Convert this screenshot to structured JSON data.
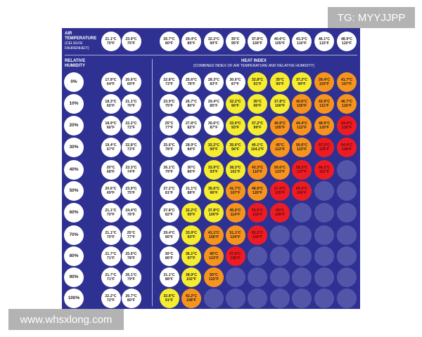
{
  "watermark_top": "TG: MYYJJPP",
  "watermark_bottom": "www.whsxlong.com",
  "header": {
    "air_temp_label": "AIR TEMPERATURE",
    "air_temp_sub": "(CELSIUS/ FAHRENHEIT)",
    "rh_label": "RELATIVE HUMIDITY",
    "heat_index_title": "HEAT INDEX",
    "heat_index_sub": "(COMBINED INDEX OF AIR TEMPERATURE AND RELATIVE HUMIDITY)"
  },
  "colors": {
    "background": "#2e3192",
    "white": "#ffffff",
    "yellow": "#f6ec30",
    "orange": "#f7941d",
    "red": "#ed1c24",
    "empty": "#5356a8"
  },
  "air_temps": [
    [
      "21.1°C",
      "70°F"
    ],
    [
      "23.9°C",
      "75°F"
    ],
    [
      "26.7°C",
      "80°F"
    ],
    [
      "29.4°C",
      "85°F"
    ],
    [
      "32.2°C",
      "90°F"
    ],
    [
      "35°C",
      "95°F"
    ],
    [
      "37.8°C",
      "100°F"
    ],
    [
      "40.6°C",
      "105°F"
    ],
    [
      "43.3°C",
      "110°F"
    ],
    [
      "46.1°C",
      "115°F"
    ],
    [
      "48.9°C",
      "120°F"
    ]
  ],
  "rows": [
    {
      "rh": "0%",
      "cells": [
        [
          "17.8°C",
          "64°F",
          "w"
        ],
        [
          "20.6°C",
          "69°F",
          "w"
        ],
        [
          "22.8°C",
          "73°F",
          "w"
        ],
        [
          "25.6°C",
          "78°F",
          "w"
        ],
        [
          "28.3°C",
          "83°F",
          "w"
        ],
        [
          "30.6°C",
          "87°F",
          "w"
        ],
        [
          "32.8°C",
          "91°F",
          "y"
        ],
        [
          "35°C",
          "95°F",
          "y"
        ],
        [
          "37.2°C",
          "99°F",
          "y"
        ],
        [
          "39.4°C",
          "103°F",
          "o"
        ],
        [
          "41.7°C",
          "107°F",
          "o"
        ]
      ]
    },
    {
      "rh": "10%",
      "cells": [
        [
          "18.3°C",
          "65°F",
          "w"
        ],
        [
          "21.1°C",
          "70°F",
          "w"
        ],
        [
          "23.9°C",
          "75°F",
          "w"
        ],
        [
          "26.7°C",
          "80°F",
          "w"
        ],
        [
          "29.4°C",
          "85°F",
          "w"
        ],
        [
          "32.2°C",
          "90°F",
          "y"
        ],
        [
          "35°C",
          "95°F",
          "y"
        ],
        [
          "37.8°C",
          "100°F",
          "y"
        ],
        [
          "40.6°C",
          "105°F",
          "o"
        ],
        [
          "43.9°C",
          "111°F",
          "o"
        ],
        [
          "46.7°C",
          "116°F",
          "o"
        ]
      ]
    },
    {
      "rh": "20%",
      "cells": [
        [
          "18.9°C",
          "66°F",
          "w"
        ],
        [
          "22.2°C",
          "72°F",
          "w"
        ],
        [
          "25°C",
          "77°F",
          "w"
        ],
        [
          "27.8°C",
          "82°F",
          "w"
        ],
        [
          "30.6°C",
          "87°F",
          "w"
        ],
        [
          "33.9°C",
          "93°F",
          "y"
        ],
        [
          "37.2°C",
          "99°F",
          "y"
        ],
        [
          "40.6°C",
          "105°F",
          "o"
        ],
        [
          "44.4°C",
          "112°F",
          "o"
        ],
        [
          "48.9°C",
          "120°F",
          "o"
        ],
        [
          "54.4°C",
          "130°F",
          "r"
        ]
      ]
    },
    {
      "rh": "30%",
      "cells": [
        [
          "19.4°C",
          "67°F",
          "w"
        ],
        [
          "22.8°C",
          "73°F",
          "w"
        ],
        [
          "25.6°C",
          "78°F",
          "w"
        ],
        [
          "28.9°C",
          "84°F",
          "w"
        ],
        [
          "32.2°C",
          "90°F",
          "y"
        ],
        [
          "35.6°C",
          "96°F",
          "y"
        ],
        [
          "40.1°C",
          "104.2°F",
          "y"
        ],
        [
          "45°C",
          "113°F",
          "o"
        ],
        [
          "50.6°C",
          "123°F",
          "o"
        ],
        [
          "57.2°C",
          "135°F",
          "r"
        ],
        [
          "64.4°C",
          "148°F",
          "r"
        ]
      ]
    },
    {
      "rh": "40%",
      "cells": [
        [
          "20°C",
          "68°F",
          "w"
        ],
        [
          "23.3°C",
          "74°F",
          "w"
        ],
        [
          "26.1°C",
          "79°F",
          "w"
        ],
        [
          "30°C",
          "86°F",
          "w"
        ],
        [
          "33.9°C",
          "93°F",
          "y"
        ],
        [
          "38.3°C",
          "101°F",
          "y"
        ],
        [
          "43.3°C",
          "110°F",
          "o"
        ],
        [
          "50.6°C",
          "123°F",
          "o"
        ],
        [
          "58.3°C",
          "137°F",
          "r"
        ],
        [
          "66.1°C",
          "151°F",
          "r"
        ],
        null
      ]
    },
    {
      "rh": "50%",
      "cells": [
        [
          "20.6°C",
          "69°F",
          "w"
        ],
        [
          "23.9°C",
          "75°F",
          "w"
        ],
        [
          "27.2°C",
          "81°F",
          "w"
        ],
        [
          "31.1°C",
          "88°F",
          "w"
        ],
        [
          "35.6°C",
          "96°F",
          "y"
        ],
        [
          "41.7°C",
          "107°F",
          "o"
        ],
        [
          "48.9°C",
          "120°F",
          "o"
        ],
        [
          "57.2°C",
          "135°F",
          "r"
        ],
        [
          "65.6°C",
          "150°F",
          "r"
        ],
        null,
        null
      ]
    },
    {
      "rh": "60%",
      "cells": [
        [
          "21.1°C",
          "70°F",
          "w"
        ],
        [
          "24.4°C",
          "76°F",
          "w"
        ],
        [
          "27.8°C",
          "82°F",
          "w"
        ],
        [
          "32.2°C",
          "90°F",
          "y"
        ],
        [
          "37.8°C",
          "100°F",
          "y"
        ],
        [
          "45.6°C",
          "114°F",
          "o"
        ],
        [
          "55.6°C",
          "132°F",
          "r"
        ],
        [
          "65°C",
          "149°F",
          "r"
        ],
        null,
        null,
        null
      ]
    },
    {
      "rh": "70%",
      "cells": [
        [
          "21.1°C",
          "70°F",
          "w"
        ],
        [
          "25°C",
          "77°F",
          "w"
        ],
        [
          "29.4°C",
          "85°F",
          "w"
        ],
        [
          "33.9°C",
          "93°F",
          "y"
        ],
        [
          "41.1°C",
          "106°F",
          "o"
        ],
        [
          "51.1°C",
          "124°F",
          "o"
        ],
        [
          "62.2°C",
          "144°F",
          "r"
        ],
        null,
        null,
        null,
        null
      ]
    },
    {
      "rh": "80%",
      "cells": [
        [
          "21.7°C",
          "71°F",
          "w"
        ],
        [
          "25.6°C",
          "78°F",
          "w"
        ],
        [
          "30°C",
          "86°F",
          "w"
        ],
        [
          "36.1°C",
          "97°F",
          "y"
        ],
        [
          "45°C",
          "113°F",
          "o"
        ],
        [
          "57.8°C",
          "136°F",
          "r"
        ],
        null,
        null,
        null,
        null,
        null
      ]
    },
    {
      "rh": "90%",
      "cells": [
        [
          "21.7°C",
          "71°F",
          "w"
        ],
        [
          "26.1°C",
          "79°F",
          "w"
        ],
        [
          "31.1°C",
          "88°F",
          "w"
        ],
        [
          "38.9°C",
          "102°F",
          "y"
        ],
        [
          "50°C",
          "122°F",
          "o"
        ],
        null,
        null,
        null,
        null,
        null,
        null
      ]
    },
    {
      "rh": "100%",
      "cells": [
        [
          "22.2°C",
          "72°F",
          "w"
        ],
        [
          "26.7°C",
          "80°F",
          "w"
        ],
        [
          "32.8°C",
          "91°F",
          "y"
        ],
        [
          "42.2°C",
          "108°F",
          "o"
        ],
        null,
        null,
        null,
        null,
        null,
        null,
        null
      ]
    }
  ]
}
